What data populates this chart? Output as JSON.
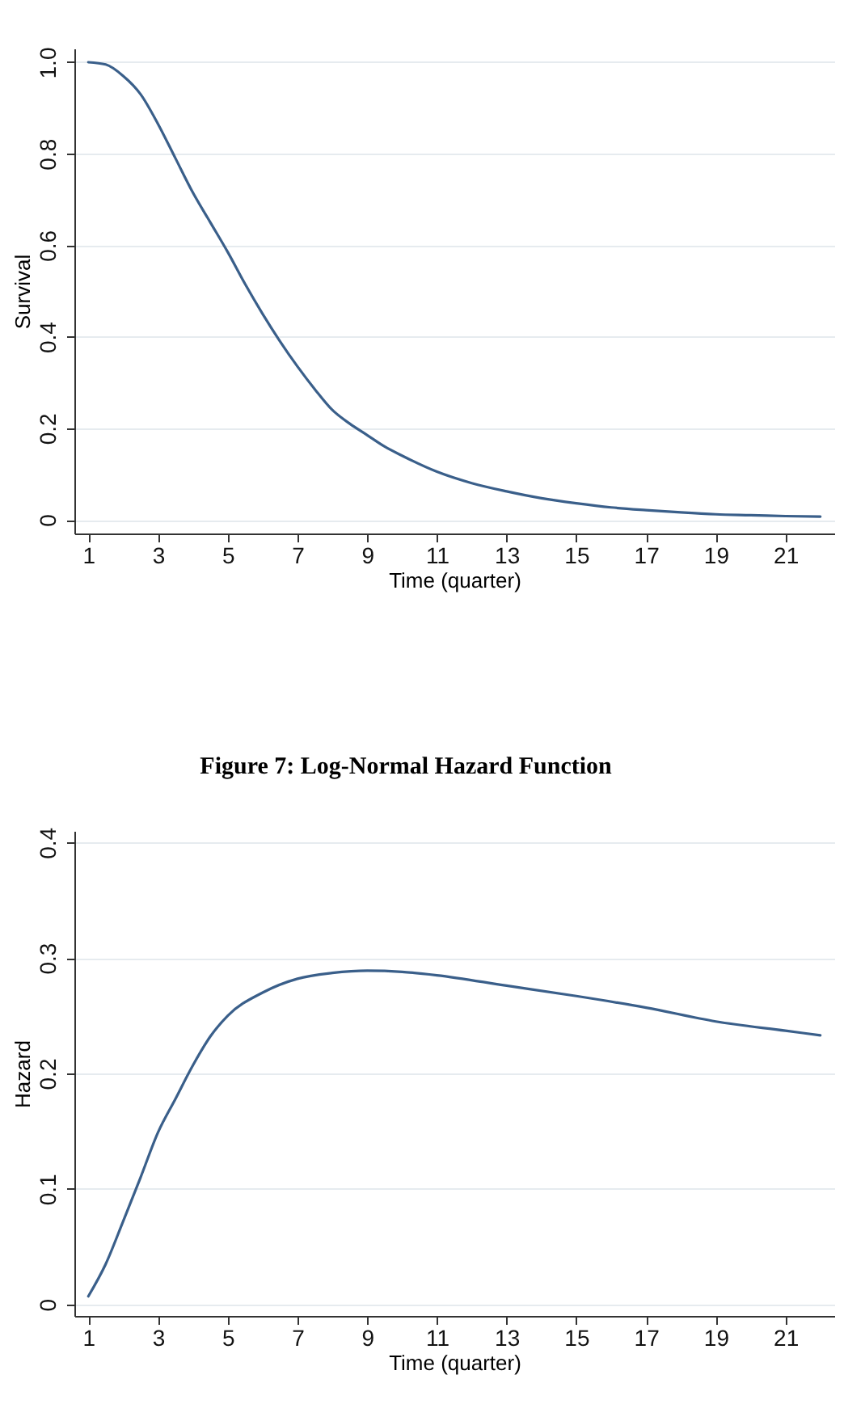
{
  "chart_data": [
    {
      "type": "line",
      "xlabel": "Time (quarter)",
      "ylabel": "Survival",
      "x": [
        1,
        1.5,
        2,
        2.5,
        3,
        3.5,
        4,
        4.5,
        5,
        5.5,
        6,
        6.5,
        7,
        7.5,
        8,
        8.5,
        9,
        9.5,
        10,
        11,
        12,
        13,
        14,
        15,
        16,
        17,
        18,
        19,
        20,
        21,
        22
      ],
      "series": [
        {
          "color": "#3a5f8a",
          "values": [
            1.0,
            0.995,
            0.97,
            0.93,
            0.865,
            0.79,
            0.715,
            0.65,
            0.585,
            0.515,
            0.45,
            0.39,
            0.335,
            0.285,
            0.24,
            0.21,
            0.185,
            0.16,
            0.14,
            0.105,
            0.08,
            0.062,
            0.047,
            0.036,
            0.027,
            0.021,
            0.016,
            0.012,
            0.01,
            0.008,
            0.007
          ]
        }
      ],
      "xlim": [
        0.6,
        22.4
      ],
      "xticks": [
        1,
        3,
        5,
        7,
        9,
        11,
        13,
        15,
        17,
        19,
        21
      ],
      "ylim": [
        -0.03,
        1.03
      ],
      "yticks": [
        0,
        0.2,
        0.4,
        0.6,
        0.8,
        {
          "value": 1,
          "label": "1.0"
        }
      ],
      "grid": "y"
    },
    {
      "type": "line",
      "title": "Figure 7: Log-Normal Hazard Function",
      "xlabel": "Time (quarter)",
      "ylabel": "Hazard",
      "x": [
        1,
        1.5,
        2,
        2.5,
        3,
        3.5,
        4,
        4.5,
        5,
        6,
        7,
        8,
        9,
        10,
        11,
        13,
        15,
        17,
        19,
        21,
        22
      ],
      "series": [
        {
          "color": "#3a5f8a",
          "values": [
            0.007,
            0.035,
            0.072,
            0.11,
            0.149,
            0.178,
            0.207,
            0.232,
            0.25,
            0.27,
            0.282,
            0.287,
            0.289,
            0.288,
            0.285,
            0.276,
            0.267,
            0.257,
            0.245,
            0.237,
            0.233
          ]
        }
      ],
      "xlim": [
        0.6,
        22.4
      ],
      "xticks": [
        1,
        3,
        5,
        7,
        9,
        11,
        13,
        15,
        17,
        19,
        21
      ],
      "ylim": [
        -0.01,
        0.41
      ],
      "yticks": [
        0,
        0.1,
        0.2,
        0.3,
        0.4
      ],
      "grid": "y"
    }
  ]
}
